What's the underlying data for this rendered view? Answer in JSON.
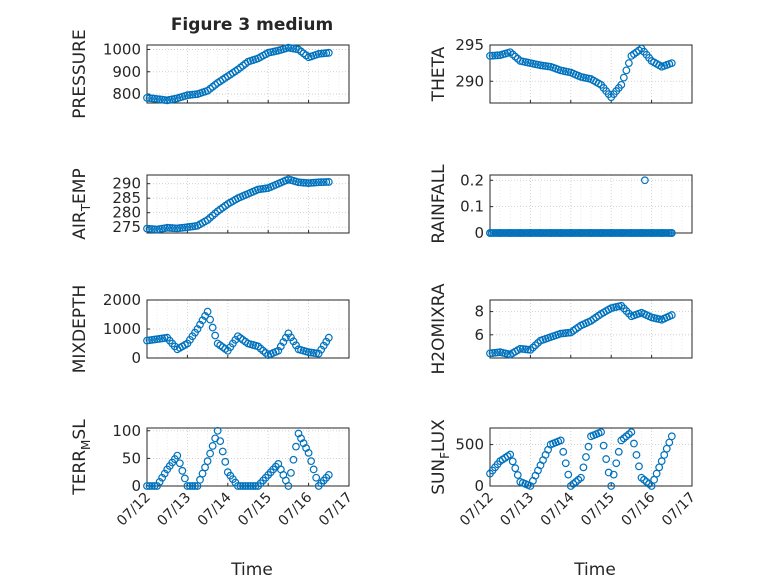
{
  "title": "Figure 3 medium",
  "xlabel": "Time",
  "date_ticks": [
    "07/12",
    "07/13",
    "07/14",
    "07/15",
    "07/16",
    "07/17"
  ],
  "colors": {
    "marker": "#0072BD",
    "axis": "#262626",
    "grid": "#c8c8c8",
    "minor_grid": "#e2e2e2"
  },
  "chart_data": [
    {
      "id": "pressure",
      "type": "scatter",
      "ylabel": "PRESSURE",
      "ylim": [
        760,
        1020
      ],
      "yticks": [
        "800",
        "900",
        "1000"
      ],
      "ytick_values": [
        800,
        900,
        1000
      ],
      "x": [
        "07/12 00:00",
        "07/12 06:00",
        "07/12 12:00",
        "07/12 18:00",
        "07/13 00:00",
        "07/13 06:00",
        "07/13 12:00",
        "07/13 18:00",
        "07/14 00:00",
        "07/14 06:00",
        "07/14 12:00",
        "07/14 18:00",
        "07/15 00:00",
        "07/15 06:00",
        "07/15 12:00",
        "07/15 18:00",
        "07/16 00:00",
        "07/16 06:00",
        "07/16 12:00"
      ],
      "values": [
        783,
        778,
        772,
        781,
        795,
        800,
        815,
        850,
        880,
        910,
        945,
        960,
        985,
        995,
        1008,
        1000,
        965,
        980,
        985
      ]
    },
    {
      "id": "theta",
      "type": "scatter",
      "ylabel": "THETA",
      "ylim": [
        287,
        295
      ],
      "yticks": [
        "290",
        "295"
      ],
      "ytick_values": [
        290,
        295
      ],
      "x": [
        "07/12 00:00",
        "07/12 06:00",
        "07/12 12:00",
        "07/12 18:00",
        "07/13 00:00",
        "07/13 06:00",
        "07/13 12:00",
        "07/13 18:00",
        "07/14 00:00",
        "07/14 06:00",
        "07/14 12:00",
        "07/14 18:00",
        "07/15 00:00",
        "07/15 06:00",
        "07/15 12:00",
        "07/15 18:00",
        "07/16 00:00",
        "07/16 06:00",
        "07/16 12:00"
      ],
      "values": [
        293.5,
        293.6,
        294.0,
        292.8,
        292.5,
        292.2,
        292.0,
        291.5,
        291.2,
        290.6,
        290.3,
        289.5,
        287.8,
        289.5,
        293.5,
        294.5,
        292.8,
        292.0,
        292.5
      ]
    },
    {
      "id": "air_temp",
      "type": "scatter",
      "ylabel": "AIR_TEMP",
      "ylim": [
        273,
        293
      ],
      "yticks": [
        "275",
        "280",
        "285",
        "290"
      ],
      "ytick_values": [
        275,
        280,
        285,
        290
      ],
      "x": [
        "07/12 00:00",
        "07/12 06:00",
        "07/12 12:00",
        "07/12 18:00",
        "07/13 00:00",
        "07/13 06:00",
        "07/13 12:00",
        "07/13 18:00",
        "07/14 00:00",
        "07/14 06:00",
        "07/14 12:00",
        "07/14 18:00",
        "07/15 00:00",
        "07/15 06:00",
        "07/15 12:00",
        "07/15 18:00",
        "07/16 00:00",
        "07/16 06:00",
        "07/16 12:00"
      ],
      "values": [
        274.5,
        274.2,
        274.8,
        274.6,
        275.0,
        275.5,
        277.5,
        280.5,
        283.0,
        285.0,
        286.5,
        288.0,
        288.5,
        290.0,
        291.5,
        290.5,
        290.2,
        290.5,
        290.6
      ]
    },
    {
      "id": "rainfall",
      "type": "scatter",
      "ylabel": "RAINFALL",
      "ylim": [
        0,
        0.22
      ],
      "yticks": [
        "0",
        "0.1",
        "0.2"
      ],
      "ytick_values": [
        0,
        0.1,
        0.2
      ],
      "x": [
        "07/12 00:00",
        "07/12 06:00",
        "07/12 12:00",
        "07/12 18:00",
        "07/13 00:00",
        "07/13 06:00",
        "07/13 12:00",
        "07/13 18:00",
        "07/14 00:00",
        "07/14 06:00",
        "07/14 12:00",
        "07/14 18:00",
        "07/15 00:00",
        "07/15 06:00",
        "07/15 12:00",
        "07/15 18:00",
        "07/15 20:00",
        "07/16 00:00",
        "07/16 06:00",
        "07/16 12:00"
      ],
      "values": [
        0,
        0,
        0,
        0,
        0,
        0,
        0,
        0,
        0,
        0,
        0,
        0,
        0,
        0,
        0,
        0,
        0.2,
        0,
        0,
        0
      ]
    },
    {
      "id": "mixdepth",
      "type": "scatter",
      "ylabel": "MIXDEPTH",
      "ylim": [
        0,
        2000
      ],
      "yticks": [
        "0",
        "1000",
        "2000"
      ],
      "ytick_values": [
        0,
        1000,
        2000
      ],
      "x": [
        "07/12 00:00",
        "07/12 06:00",
        "07/12 12:00",
        "07/12 18:00",
        "07/13 00:00",
        "07/13 06:00",
        "07/13 12:00",
        "07/13 18:00",
        "07/14 00:00",
        "07/14 06:00",
        "07/14 12:00",
        "07/14 18:00",
        "07/15 00:00",
        "07/15 06:00",
        "07/15 12:00",
        "07/15 18:00",
        "07/16 00:00",
        "07/16 06:00",
        "07/16 12:00"
      ],
      "values": [
        600,
        650,
        700,
        300,
        500,
        1000,
        1600,
        500,
        250,
        750,
        500,
        400,
        100,
        250,
        850,
        300,
        200,
        150,
        700
      ]
    },
    {
      "id": "h2omixra",
      "type": "scatter",
      "ylabel": "H2OMIXRA",
      "ylim": [
        4,
        9
      ],
      "yticks": [
        "6",
        "8"
      ],
      "ytick_values": [
        6,
        8
      ],
      "x": [
        "07/12 00:00",
        "07/12 06:00",
        "07/12 12:00",
        "07/12 18:00",
        "07/13 00:00",
        "07/13 06:00",
        "07/13 12:00",
        "07/13 18:00",
        "07/14 00:00",
        "07/14 06:00",
        "07/14 12:00",
        "07/14 18:00",
        "07/15 00:00",
        "07/15 06:00",
        "07/15 12:00",
        "07/15 18:00",
        "07/16 00:00",
        "07/16 06:00",
        "07/16 12:00"
      ],
      "values": [
        4.4,
        4.5,
        4.3,
        4.8,
        4.7,
        5.5,
        5.8,
        6.1,
        6.2,
        6.8,
        7.2,
        7.8,
        8.3,
        8.5,
        7.6,
        7.9,
        7.5,
        7.3,
        7.7
      ]
    },
    {
      "id": "terr_msl",
      "type": "scatter",
      "ylabel": "TERR_MSL",
      "ylim": [
        0,
        105
      ],
      "yticks": [
        "0",
        "50",
        "100"
      ],
      "ytick_values": [
        0,
        50,
        100
      ],
      "x": [
        "07/12 00:00",
        "07/12 06:00",
        "07/12 12:00",
        "07/12 18:00",
        "07/13 00:00",
        "07/13 06:00",
        "07/13 12:00",
        "07/13 18:00",
        "07/14 00:00",
        "07/14 06:00",
        "07/14 12:00",
        "07/14 18:00",
        "07/15 00:00",
        "07/15 06:00",
        "07/15 12:00",
        "07/15 18:00",
        "07/16 00:00",
        "07/16 06:00",
        "07/16 12:00"
      ],
      "values": [
        0,
        0,
        30,
        55,
        0,
        0,
        45,
        100,
        25,
        0,
        0,
        0,
        20,
        40,
        0,
        95,
        60,
        0,
        20
      ]
    },
    {
      "id": "sun_flux",
      "type": "scatter",
      "ylabel": "SUN_FLUX",
      "ylim": [
        0,
        700
      ],
      "yticks": [
        "0",
        "500"
      ],
      "ytick_values": [
        0,
        500
      ],
      "x": [
        "07/12 00:00",
        "07/12 06:00",
        "07/12 12:00",
        "07/12 18:00",
        "07/13 00:00",
        "07/13 06:00",
        "07/13 12:00",
        "07/13 18:00",
        "07/14 00:00",
        "07/14 06:00",
        "07/14 12:00",
        "07/14 18:00",
        "07/15 00:00",
        "07/15 06:00",
        "07/15 12:00",
        "07/15 18:00",
        "07/16 00:00",
        "07/16 06:00",
        "07/16 12:00"
      ],
      "values": [
        150,
        300,
        380,
        50,
        0,
        250,
        500,
        550,
        0,
        100,
        600,
        650,
        0,
        550,
        650,
        100,
        0,
        300,
        600
      ]
    }
  ]
}
